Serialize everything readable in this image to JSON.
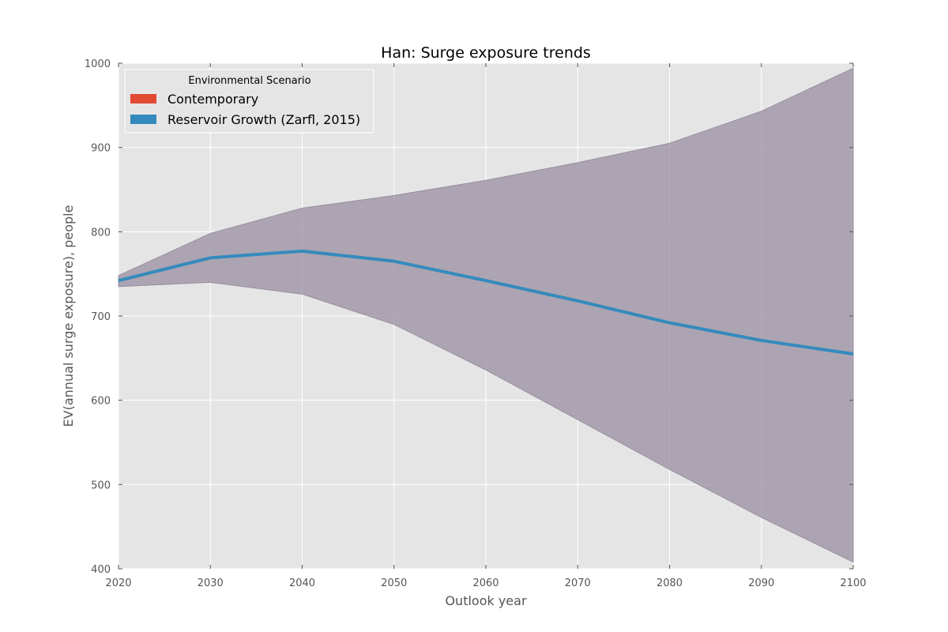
{
  "chart_data": {
    "type": "line",
    "title": "Han: Surge exposure trends",
    "xlabel": "Outlook year",
    "ylabel": "EV(annual surge exposure), people",
    "xlim": [
      2020,
      2100
    ],
    "ylim": [
      400,
      1000
    ],
    "x_ticks": [
      2020,
      2030,
      2040,
      2050,
      2060,
      2070,
      2080,
      2090,
      2100
    ],
    "y_ticks": [
      400,
      500,
      600,
      700,
      800,
      900,
      1000
    ],
    "grid": true,
    "legend": {
      "title": "Environmental Scenario",
      "placement": "top-left",
      "entries": [
        {
          "label": "Contemporary",
          "color": "#e24a33"
        },
        {
          "label": "Reservoir Growth (Zarfl, 2015)",
          "color": "#348abd"
        }
      ]
    },
    "x": [
      2020,
      2030,
      2040,
      2050,
      2060,
      2070,
      2080,
      2090,
      2100
    ],
    "series": [
      {
        "name": "Reservoir Growth (Zarfl, 2015)",
        "color": "#348abd",
        "values": [
          742,
          769,
          777,
          765,
          742,
          718,
          692,
          671,
          655
        ],
        "band_upper": [
          748,
          798,
          828,
          843,
          861,
          882,
          905,
          943,
          994
        ],
        "band_lower": [
          735,
          740,
          726,
          690,
          636,
          577,
          518,
          461,
          408
        ],
        "band_color": "#988ea0"
      }
    ],
    "colors": {
      "plot_background": "#e5e5e5",
      "grid": "#ffffff"
    }
  }
}
